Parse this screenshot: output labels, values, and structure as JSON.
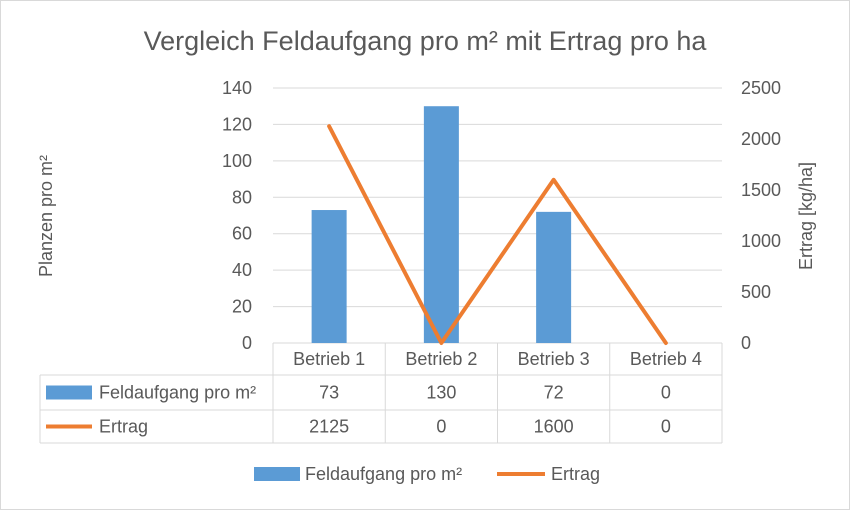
{
  "chart_data": {
    "type": "bar",
    "title": "Vergleich Feldaufgang pro m² mit Ertrag pro ha",
    "categories": [
      "Betrieb 1",
      "Betrieb 2",
      "Betrieb 3",
      "Betrieb 4"
    ],
    "ylabel": "Planzen pro m²",
    "y2label": "Ertrag [kg/ha]",
    "ylim": [
      0,
      140
    ],
    "y2lim": [
      0,
      2500
    ],
    "yticks": [
      0,
      20,
      40,
      60,
      80,
      100,
      120,
      140
    ],
    "y2ticks": [
      0,
      500,
      1000,
      1500,
      2000,
      2500
    ],
    "grid": true,
    "legend_position": "bottom",
    "data_table": true,
    "series": [
      {
        "name": "Feldaufgang pro m²",
        "type": "bar",
        "axis": "left",
        "color": "#5b9bd5",
        "values": [
          73,
          130,
          72,
          0
        ]
      },
      {
        "name": "Ertrag",
        "type": "line",
        "axis": "right",
        "color": "#ed7d31",
        "values": [
          2125,
          0,
          1600,
          0
        ]
      }
    ]
  }
}
